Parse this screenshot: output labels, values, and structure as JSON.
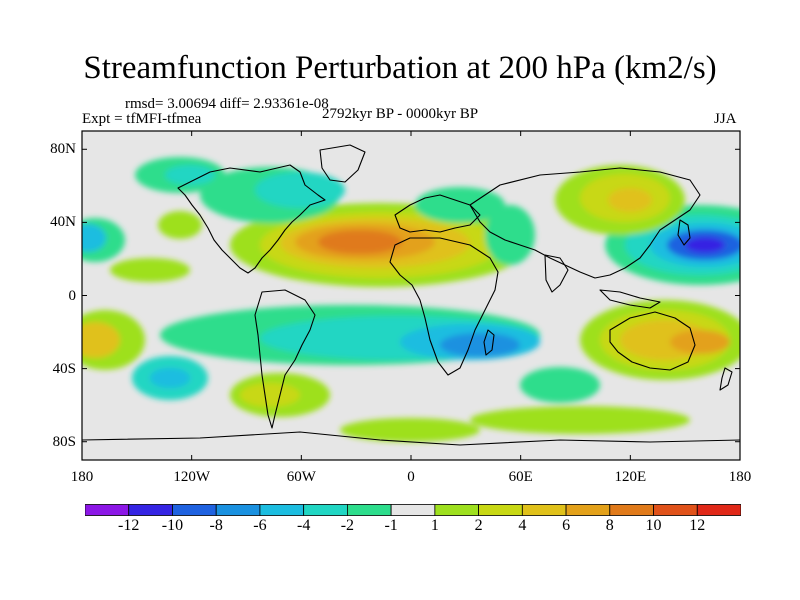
{
  "title": "Streamfunction Perturbation at 200 hPa (km2/s)",
  "stats_text": "rmsd= 3.00694 diff= 2.93361e-08",
  "experiment": "Expt = tfMFI-tfmea",
  "period": "2792kyr BP - 0000kyr BP",
  "season": "JJA",
  "lat_ticks": [
    {
      "label": "80N",
      "lat": 80
    },
    {
      "label": "40N",
      "lat": 40
    },
    {
      "label": "0",
      "lat": 0
    },
    {
      "label": "40S",
      "lat": -40
    },
    {
      "label": "80S",
      "lat": -80
    }
  ],
  "lon_ticks": [
    {
      "label": "180",
      "lon": -180
    },
    {
      "label": "120W",
      "lon": -120
    },
    {
      "label": "60W",
      "lon": -60
    },
    {
      "label": "0",
      "lon": 0
    },
    {
      "label": "60E",
      "lon": 60
    },
    {
      "label": "120E",
      "lon": 120
    },
    {
      "label": "180",
      "lon": 180
    }
  ],
  "colorbar": {
    "colors": [
      "#8c17e6",
      "#3524e3",
      "#1f62e0",
      "#1a91e0",
      "#1cbde0",
      "#20d6c3",
      "#2ddd8c",
      "#e6e6e6",
      "#9ee01e",
      "#c8d814",
      "#e0c11a",
      "#e3a11a",
      "#e07a1a",
      "#e0521a",
      "#e02818"
    ],
    "labels": [
      "-12",
      "-10",
      "-8",
      "-6",
      "-4",
      "-2",
      "-1",
      "1",
      "2",
      "4",
      "6",
      "8",
      "10",
      "12"
    ]
  }
}
